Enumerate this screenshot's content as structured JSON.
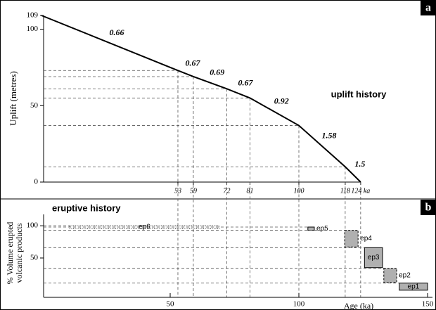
{
  "chart_data": [
    {
      "type": "line",
      "panel_label": "a",
      "annotation": "uplift history",
      "ylabel": "Uplift (metres)",
      "x": [
        0,
        53,
        59,
        72,
        81,
        100,
        118,
        124
      ],
      "values": [
        109,
        73,
        69,
        61,
        55,
        37,
        10,
        0
      ],
      "rates": [
        0.66,
        0.67,
        0.69,
        0.67,
        0.92,
        1.58,
        1.5
      ],
      "color": "#000000",
      "xlim": [
        0,
        150
      ],
      "ylim": [
        0,
        109
      ],
      "xticks": [
        53,
        59,
        72,
        81,
        100,
        118,
        {
          "value": 124,
          "label": "124 ka"
        }
      ],
      "yticks": [
        0,
        50,
        100,
        109
      ],
      "guides": true
    },
    {
      "type": "range",
      "panel_label": "b",
      "title": "eruptive history",
      "xlabel": "Age (ka)",
      "ylabel": [
        "% Volume erupted",
        "volcanic products"
      ],
      "xlim": [
        0,
        150
      ],
      "ylim": [
        -10,
        110
      ],
      "xticks": [
        50,
        100,
        150
      ],
      "yticks": [
        50,
        100
      ],
      "series": [
        {
          "name": "ep6",
          "x": [
            11,
            69
          ],
          "y": [
            96,
            100
          ],
          "color": "#ffffff",
          "border": "dotted",
          "label_position": "inside"
        },
        {
          "name": "ep5",
          "x": [
            103.5,
            106
          ],
          "y": [
            93,
            98
          ],
          "color": "#b0b0b0",
          "border": "solid",
          "label_position": "right"
        },
        {
          "name": "ep4",
          "x": [
            117.8,
            123
          ],
          "y": [
            67,
            93
          ],
          "color": "#b0b0b0",
          "border": "dashed",
          "label_position": "right"
        },
        {
          "name": "ep3",
          "x": [
            125.5,
            132.5
          ],
          "y": [
            35,
            66
          ],
          "color": "#b0b0b0",
          "border": "solid",
          "label_position": "inside"
        },
        {
          "name": "ep2",
          "x": [
            133,
            138
          ],
          "y": [
            12,
            34
          ],
          "color": "#b0b0b0",
          "border": "dashed",
          "label_position": "right"
        },
        {
          "name": "ep1",
          "x": [
            139,
            150
          ],
          "y": [
            0,
            11
          ],
          "color": "#b0b0b0",
          "border": "solid",
          "label_position": "inside"
        }
      ]
    }
  ]
}
